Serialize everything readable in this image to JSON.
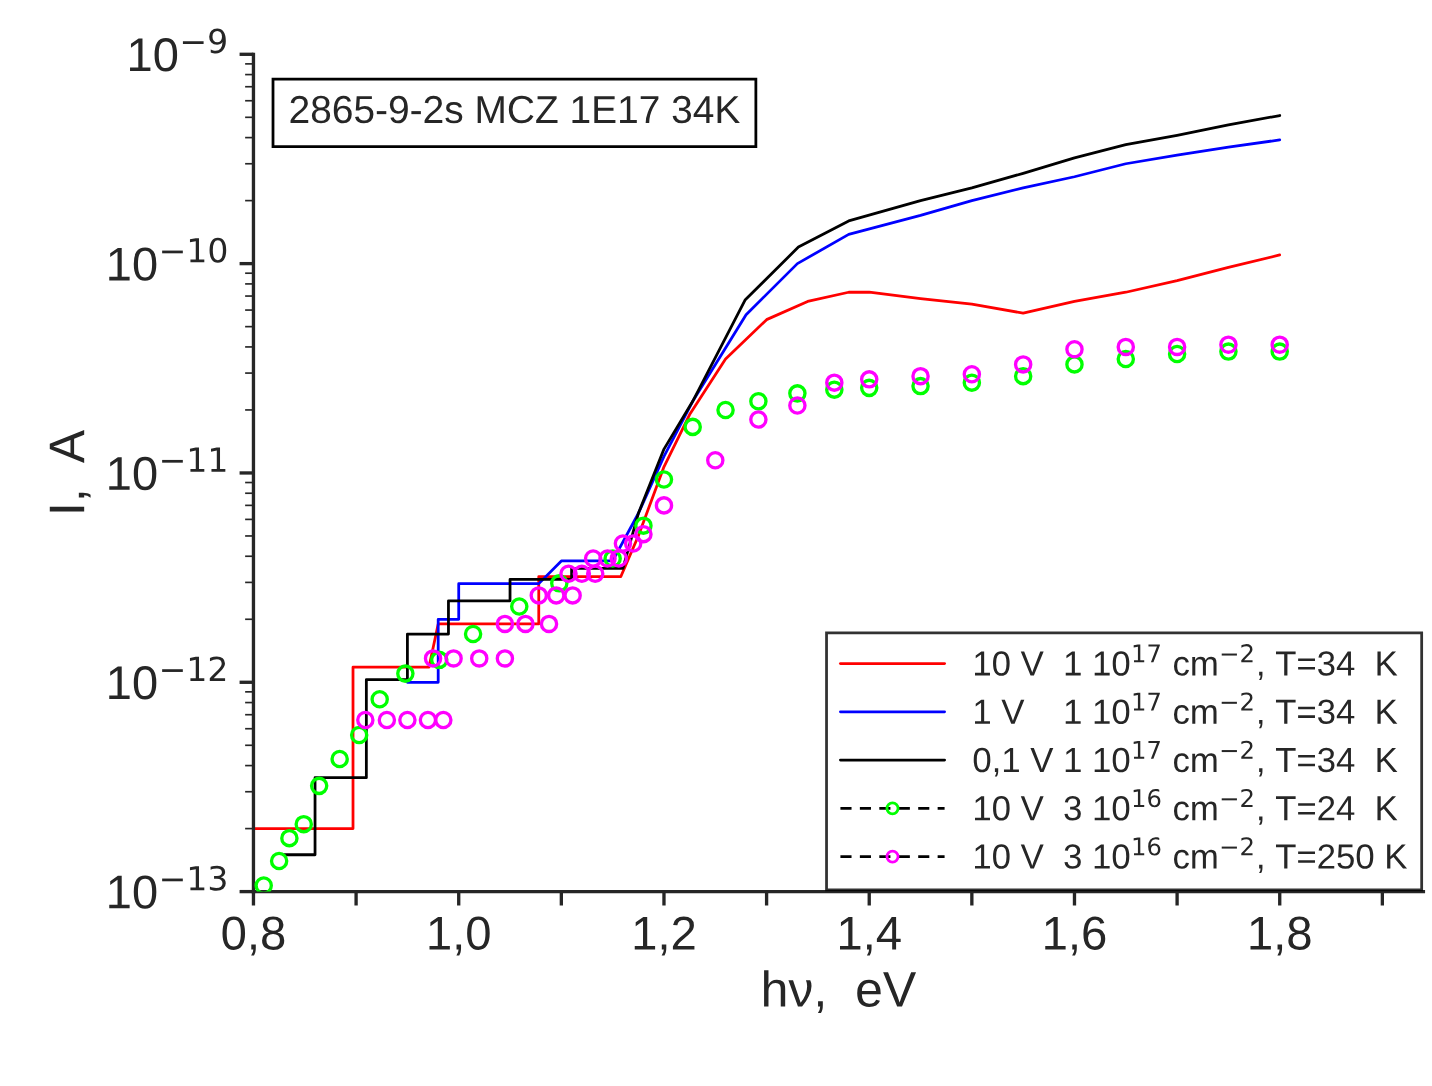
{
  "chart_data": {
    "type": "line",
    "xlabel": "hν,  eV",
    "ylabel": "I,  A",
    "annotations": [
      "2865-9-2s MCZ 1E17 34K"
    ],
    "log": "y",
    "grid": false,
    "legend": "bottom right",
    "xlim": [
      0.8,
      1.94
    ],
    "ylim": [
      1e-13,
      1e-09
    ],
    "xticks": [
      {
        "value": 0.8,
        "label": "0,8"
      },
      {
        "value": 0.9,
        "label": null
      },
      {
        "value": 1.0,
        "label": "1,0"
      },
      {
        "value": 1.1,
        "label": null
      },
      {
        "value": 1.2,
        "label": "1,2"
      },
      {
        "value": 1.3,
        "label": null
      },
      {
        "value": 1.4,
        "label": "1,4"
      },
      {
        "value": 1.5,
        "label": null
      },
      {
        "value": 1.6,
        "label": "1,6"
      },
      {
        "value": 1.7,
        "label": null
      },
      {
        "value": 1.8,
        "label": "1,8"
      },
      {
        "value": 1.9,
        "label": null
      }
    ],
    "yticks": [
      {
        "value": 1e-13,
        "label": "10$^{−13}$"
      },
      {
        "value": 1e-12,
        "label": "10$^{−12}$"
      },
      {
        "value": 1e-11,
        "label": "10$^{−11}$"
      },
      {
        "value": 1e-10,
        "label": "10$^{−10}$"
      },
      {
        "value": 1e-09,
        "label": "10$^{−9}$"
      }
    ],
    "series": [
      {
        "name": "10 V  1 10$^{17}$ cm$^{−2}$, T=34  K",
        "color": "#ff0000",
        "marker": "none",
        "x": [
          0.8,
          0.897,
          0.897,
          0.971,
          0.98,
          1.078,
          1.078,
          1.158,
          1.175,
          1.2,
          1.225,
          1.26,
          1.3,
          1.34,
          1.38,
          1.4,
          1.45,
          1.5,
          1.55,
          1.6,
          1.65,
          1.7,
          1.75,
          1.8
        ],
        "values": [
          2e-13,
          2e-13,
          1.18e-12,
          1.18e-12,
          1.9e-12,
          1.9e-12,
          3.2e-12,
          3.2e-12,
          5e-12,
          1.07e-11,
          1.9e-11,
          3.5e-11,
          5.4e-11,
          6.6e-11,
          7.3e-11,
          7.3e-11,
          6.8e-11,
          6.4e-11,
          5.8e-11,
          6.6e-11,
          7.3e-11,
          8.3e-11,
          9.6e-11,
          1.1e-10
        ]
      },
      {
        "name": "1 V    1 10$^{17}$ cm$^{−2}$, T=34  K",
        "color": "#0000ff",
        "marker": "none",
        "x": [
          0.95,
          0.98,
          0.98,
          1.0,
          1.0,
          1.078,
          1.1,
          1.15,
          1.175,
          1.2,
          1.228,
          1.28,
          1.33,
          1.38,
          1.45,
          1.5,
          1.55,
          1.6,
          1.65,
          1.7,
          1.75,
          1.8
        ],
        "values": [
          1e-12,
          1e-12,
          2e-12,
          2e-12,
          2.96e-12,
          2.96e-12,
          3.8e-12,
          3.8e-12,
          6.4e-12,
          1.2e-11,
          2.2e-11,
          5.7e-11,
          1e-10,
          1.38e-10,
          1.7e-10,
          2e-10,
          2.3e-10,
          2.6e-10,
          3e-10,
          3.3e-10,
          3.6e-10,
          3.9e-10
        ]
      },
      {
        "name": "0,1 V 1 10$^{17}$ cm$^{−2}$, T=34  K",
        "color": "#000000",
        "marker": "none",
        "x": [
          0.83,
          0.86,
          0.86,
          0.91,
          0.91,
          0.95,
          0.95,
          0.99,
          0.99,
          1.05,
          1.05,
          1.11,
          1.11,
          1.16,
          1.175,
          1.2,
          1.228,
          1.279,
          1.331,
          1.38,
          1.45,
          1.5,
          1.55,
          1.6,
          1.65,
          1.7,
          1.75,
          1.8
        ],
        "values": [
          1.5e-13,
          1.5e-13,
          3.5e-13,
          3.5e-13,
          1.03e-12,
          1.03e-12,
          1.7e-12,
          1.7e-12,
          2.45e-12,
          2.45e-12,
          3.1e-12,
          3.1e-12,
          3.5e-12,
          3.5e-12,
          6.4e-12,
          1.3e-11,
          2.2e-11,
          6.7e-11,
          1.2e-10,
          1.6e-10,
          2e-10,
          2.3e-10,
          2.7e-10,
          3.2e-10,
          3.7e-10,
          4.1e-10,
          4.6e-10,
          5.1e-10
        ]
      },
      {
        "name": "10 V  3 10$^{16}$ cm$^{−2}$, T=24  K",
        "color": "#00ff00",
        "type": "scatter",
        "marker": "circle",
        "x": [
          0.81,
          0.825,
          0.835,
          0.849,
          0.864,
          0.884,
          0.903,
          0.923,
          0.948,
          0.981,
          1.014,
          1.059,
          1.098,
          1.15,
          1.18,
          1.2,
          1.228,
          1.26,
          1.292,
          1.33,
          1.366,
          1.4,
          1.45,
          1.5,
          1.55,
          1.6,
          1.65,
          1.7,
          1.75,
          1.8
        ],
        "values": [
          1.07e-13,
          1.4e-13,
          1.8e-13,
          2.1e-13,
          3.2e-13,
          4.3e-13,
          5.6e-13,
          8.3e-13,
          1.1e-12,
          1.28e-12,
          1.7e-12,
          2.3e-12,
          2.97e-12,
          3.9e-12,
          5.6e-12,
          9.3e-12,
          1.66e-11,
          2e-11,
          2.2e-11,
          2.4e-11,
          2.5e-11,
          2.55e-11,
          2.6e-11,
          2.7e-11,
          2.9e-11,
          3.3e-11,
          3.5e-11,
          3.7e-11,
          3.8e-11,
          3.8e-11
        ]
      },
      {
        "name": "10 V  3 10$^{16}$ cm$^{−2}$, T=250 K",
        "color": "#ff00ff",
        "type": "scatter",
        "marker": "circle",
        "x": [
          0.909,
          0.93,
          0.95,
          0.97,
          0.985,
          0.975,
          0.995,
          1.02,
          1.045,
          1.045,
          1.065,
          1.088,
          1.078,
          1.095,
          1.111,
          1.107,
          1.12,
          1.133,
          1.131,
          1.145,
          1.156,
          1.16,
          1.17,
          1.18,
          1.2,
          1.25,
          1.292,
          1.33,
          1.366,
          1.4,
          1.45,
          1.5,
          1.55,
          1.6,
          1.65,
          1.7,
          1.75,
          1.8
        ],
        "values": [
          6.6e-13,
          6.6e-13,
          6.6e-13,
          6.6e-13,
          6.6e-13,
          1.3e-12,
          1.3e-12,
          1.3e-12,
          1.3e-12,
          1.9e-12,
          1.9e-12,
          1.9e-12,
          2.6e-12,
          2.6e-12,
          2.6e-12,
          3.3e-12,
          3.3e-12,
          3.3e-12,
          3.9e-12,
          3.9e-12,
          3.9e-12,
          4.6e-12,
          4.6e-12,
          5.1e-12,
          7e-12,
          1.15e-11,
          1.8e-11,
          2.1e-11,
          2.7e-11,
          2.8e-11,
          2.9e-11,
          2.96e-11,
          3.3e-11,
          3.9e-11,
          4e-11,
          4e-11,
          4.1e-11,
          4.1e-11
        ]
      }
    ]
  }
}
